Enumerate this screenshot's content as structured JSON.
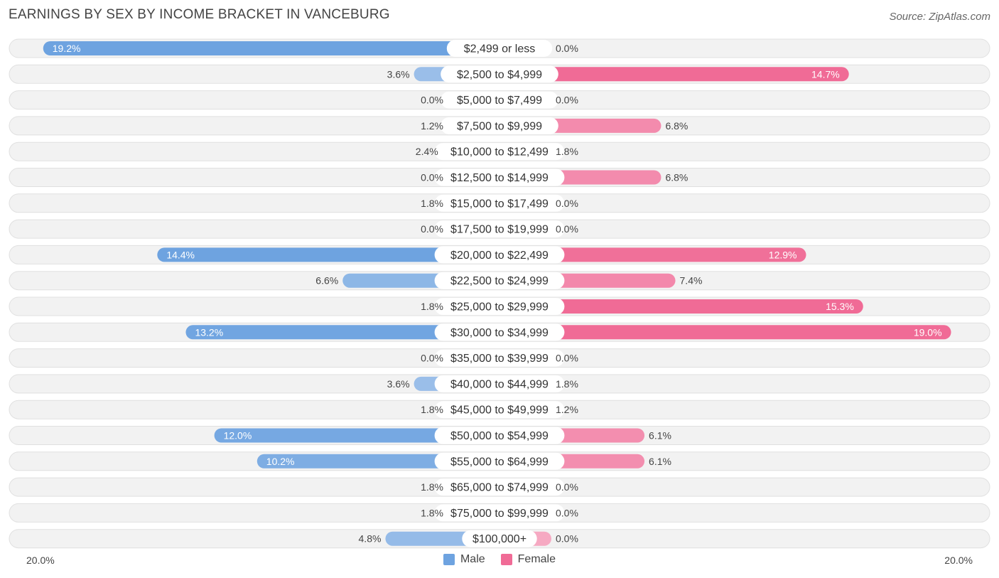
{
  "title": "EARNINGS BY SEX BY INCOME BRACKET IN VANCEBURG",
  "source": "Source: ZipAtlas.com",
  "colors": {
    "male": "#6ea3e0",
    "male_light": "#a9c8ec",
    "female": "#f06b96",
    "female_light": "#f6a9c2"
  },
  "axis": {
    "left_label": "20.0%",
    "right_label": "20.0%"
  },
  "legend": {
    "male": "Male",
    "female": "Female"
  },
  "chart_data": {
    "type": "bar",
    "title": "EARNINGS BY SEX BY INCOME BRACKET IN VANCEBURG",
    "xlim": [
      -20,
      20
    ],
    "categories": [
      "$2,499 or less",
      "$2,500 to $4,999",
      "$5,000 to $7,499",
      "$7,500 to $9,999",
      "$10,000 to $12,499",
      "$12,500 to $14,999",
      "$15,000 to $17,499",
      "$17,500 to $19,999",
      "$20,000 to $22,499",
      "$22,500 to $24,999",
      "$25,000 to $29,999",
      "$30,000 to $34,999",
      "$35,000 to $39,999",
      "$40,000 to $44,999",
      "$45,000 to $49,999",
      "$50,000 to $54,999",
      "$55,000 to $64,999",
      "$65,000 to $74,999",
      "$75,000 to $99,999",
      "$100,000+"
    ],
    "series": [
      {
        "name": "Male",
        "values": [
          19.2,
          3.6,
          0.0,
          1.2,
          2.4,
          0.0,
          1.8,
          0.0,
          14.4,
          6.6,
          1.8,
          13.2,
          0.0,
          3.6,
          1.8,
          12.0,
          10.2,
          1.8,
          1.8,
          4.8
        ],
        "labels": [
          "19.2%",
          "3.6%",
          "0.0%",
          "1.2%",
          "2.4%",
          "0.0%",
          "1.8%",
          "0.0%",
          "14.4%",
          "6.6%",
          "1.8%",
          "13.2%",
          "0.0%",
          "3.6%",
          "1.8%",
          "12.0%",
          "10.2%",
          "1.8%",
          "1.8%",
          "4.8%"
        ]
      },
      {
        "name": "Female",
        "values": [
          0.0,
          14.7,
          0.0,
          6.8,
          1.8,
          6.8,
          0.0,
          0.0,
          12.9,
          7.4,
          15.3,
          19.0,
          0.0,
          1.8,
          1.2,
          6.1,
          6.1,
          0.0,
          0.0,
          0.0
        ],
        "labels": [
          "0.0%",
          "14.7%",
          "0.0%",
          "6.8%",
          "1.8%",
          "6.8%",
          "0.0%",
          "0.0%",
          "12.9%",
          "7.4%",
          "15.3%",
          "19.0%",
          "0.0%",
          "1.8%",
          "1.2%",
          "6.1%",
          "6.1%",
          "0.0%",
          "0.0%",
          "0.0%"
        ]
      }
    ]
  }
}
